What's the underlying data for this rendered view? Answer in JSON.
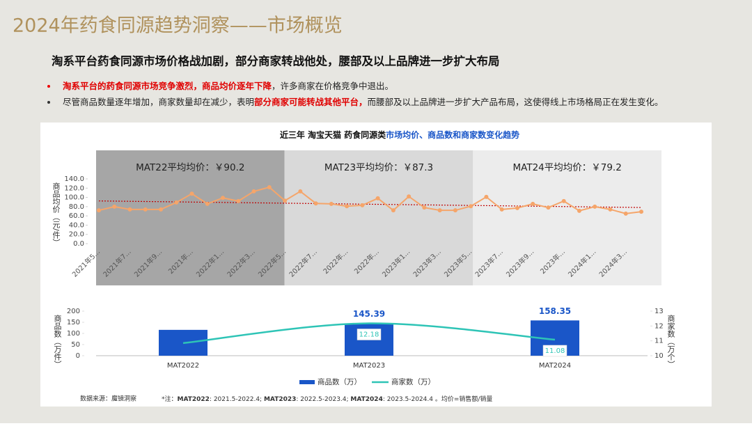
{
  "header": {
    "title": "2024年药食同源趋势洞察——市场概览",
    "subtitle": "淘系平台药食同源市场价格战加剧，部分商家转战他处，腰部及以上品牌进一步扩大布局",
    "bullets": [
      [
        {
          "text": "淘系平台的药食同源市场竞争激烈，商品均价逐年下降",
          "highlight": true
        },
        {
          "text": "，许多商家在价格竞争中退出。",
          "highlight": false
        }
      ],
      [
        {
          "text": "尽管商品数量逐年增加，商家数量却在减少，表明",
          "highlight": false
        },
        {
          "text": "部分商家可能转战其他平台，",
          "highlight": true
        },
        {
          "text": "而腰部及以上品牌进一步扩大产品布局，这使得线上市场格局正在发生变化。",
          "highlight": false
        }
      ]
    ]
  },
  "panel": {
    "title": [
      "近三年 淘宝天猫 药食同源类",
      "市场均价、商品数和商家数变化趋势"
    ],
    "source": "数据来源：魔镜洞察",
    "footnote": [
      {
        "text": "*注：",
        "bold": false
      },
      {
        "text": "MAT2022",
        "bold": true
      },
      {
        "text": ": 2021.5-2022.4; ",
        "bold": false
      },
      {
        "text": "MAT2023",
        "bold": true
      },
      {
        "text": ": 2022.5-2023.4; ",
        "bold": false
      },
      {
        "text": "MAT2024",
        "bold": true
      },
      {
        "text": ": 2023.5-2024.4 。均价=销售额/销量",
        "bold": false
      }
    ]
  },
  "chart_data": [
    {
      "type": "line",
      "ylabel": "商品均价（元/件）",
      "color": "#f5a56a",
      "trend_color": "#c00000",
      "bands": [
        {
          "label": "MAT22平均均价：￥90.2",
          "color": "#a6a6a6"
        },
        {
          "label": "MAT23平均均价：￥87.3",
          "color": "#d9d9d9"
        },
        {
          "label": "MAT24平均均价：￥79.2",
          "color": "#ececec"
        }
      ],
      "categories": [
        "2021年5...",
        null,
        "2021年7...",
        null,
        "2021年9...",
        null,
        "2021年...",
        null,
        "2022年1...",
        null,
        "2022年3...",
        null,
        "2022年5...",
        null,
        "2022年7...",
        null,
        "2022年...",
        null,
        "2022年...",
        null,
        "2023年1...",
        null,
        "2023年3...",
        null,
        "2023年5...",
        null,
        "2023年7...",
        null,
        "2023年9...",
        null,
        "2023年...",
        null,
        "2024年1...",
        null,
        "2024年3...",
        null
      ],
      "values": [
        72,
        80,
        74,
        74,
        74,
        89,
        108,
        86,
        99,
        92,
        113,
        122,
        93,
        113,
        87,
        86,
        81,
        83,
        98,
        72,
        102,
        78,
        72,
        72,
        81,
        101,
        74,
        77,
        86,
        78,
        92,
        71,
        80,
        74,
        65,
        69
      ],
      "ylim": [
        0,
        140
      ],
      "yticks": [
        {
          "value": 0,
          "label": "0.0"
        },
        {
          "value": 20,
          "label": "20.0"
        },
        {
          "value": 40,
          "label": "40.0"
        },
        {
          "value": 60,
          "label": "60.0"
        },
        {
          "value": 80,
          "label": "80.0"
        },
        {
          "value": 100,
          "label": "100.0"
        },
        {
          "value": 120,
          "label": "120.0"
        },
        {
          "value": 140,
          "label": "140.0"
        }
      ]
    },
    {
      "type": "bar-line",
      "ylabel": "商品数（万件）",
      "y2label": "商家数（万个）",
      "categories": [
        "MAT2022",
        "MAT2023",
        "MAT2024"
      ],
      "series": [
        {
          "name": "商品数（万）",
          "color": "#1a56c8",
          "values": [
            116,
            145.39,
            158.35
          ],
          "value_labels": [
            null,
            "145.39",
            "158.35"
          ]
        },
        {
          "name": "商家数（万）",
          "color": "#2ec4b6",
          "axis": "y2",
          "values": [
            10.85,
            12.18,
            11.08
          ],
          "value_labels": [
            null,
            "12.18",
            "11.08"
          ]
        }
      ],
      "ylim": [
        0,
        200
      ],
      "yticks": [
        0,
        50,
        100,
        150,
        200
      ],
      "y2lim": [
        10,
        13
      ],
      "y2ticks": [
        10,
        11,
        12,
        13
      ]
    }
  ]
}
